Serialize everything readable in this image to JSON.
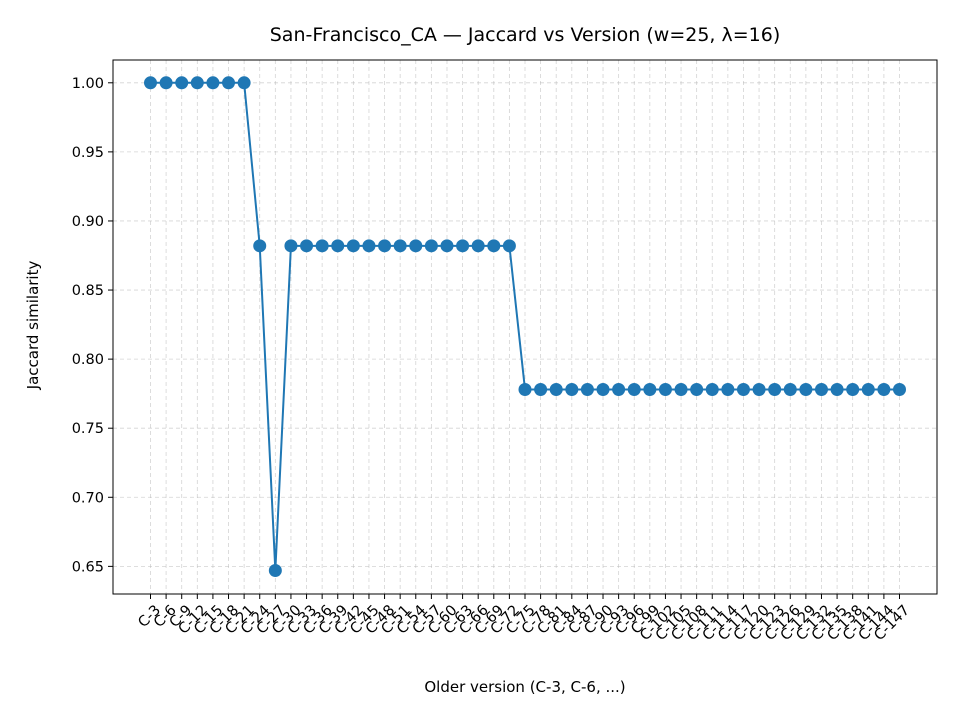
{
  "chart_data": {
    "type": "line",
    "title": "San-Francisco_CA — Jaccard vs Version (w=25, λ=16)",
    "xlabel": "Older version (C-3, C-6, ...)",
    "ylabel": "Jaccard similarity",
    "categories": [
      "C-3",
      "C-6",
      "C-9",
      "C-12",
      "C-15",
      "C-18",
      "C-21",
      "C-24",
      "C-27",
      "C-30",
      "C-33",
      "C-36",
      "C-39",
      "C-42",
      "C-45",
      "C-48",
      "C-51",
      "C-54",
      "C-57",
      "C-60",
      "C-63",
      "C-66",
      "C-69",
      "C-72",
      "C-75",
      "C-78",
      "C-81",
      "C-84",
      "C-87",
      "C-90",
      "C-93",
      "C-96",
      "C-99",
      "C-102",
      "C-105",
      "C-108",
      "C-111",
      "C-114",
      "C-117",
      "C-120",
      "C-123",
      "C-126",
      "C-129",
      "C-132",
      "C-135",
      "C-138",
      "C-141",
      "C-144",
      "C-147"
    ],
    "series": [
      {
        "values": [
          1.0,
          1.0,
          1.0,
          1.0,
          1.0,
          1.0,
          1.0,
          0.882,
          0.647,
          0.882,
          0.882,
          0.882,
          0.882,
          0.882,
          0.882,
          0.882,
          0.882,
          0.882,
          0.882,
          0.882,
          0.882,
          0.882,
          0.882,
          0.882,
          0.778,
          0.778,
          0.778,
          0.778,
          0.778,
          0.778,
          0.778,
          0.778,
          0.778,
          0.778,
          0.778,
          0.778,
          0.778,
          0.778,
          0.778,
          0.778,
          0.778,
          0.778,
          0.778,
          0.778,
          0.778,
          0.778,
          0.778,
          0.778,
          0.778
        ],
        "color": "#1f77b4"
      }
    ],
    "yticks": [
      "0.65",
      "0.70",
      "0.75",
      "0.80",
      "0.85",
      "0.90",
      "0.95",
      "1.00"
    ],
    "ylim": [
      0.63,
      1.0165
    ],
    "grid": true,
    "legend": false
  }
}
